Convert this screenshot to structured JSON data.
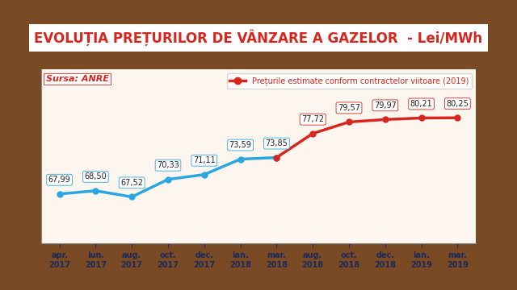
{
  "chart_data": {
    "type": "line",
    "title": "EVOLUȚIA PREȚURILOR DE VÂNZARE A GAZELOR  - Lei/MWh",
    "annotations": [
      "Sursa: ANRE"
    ],
    "categories": [
      "apr.\n2017",
      "iun.\n2017",
      "aug.\n2017",
      "oct.\n2017",
      "dec.\n2017",
      "ian.\n2018",
      "mar.\n2018",
      "aug.\n2018",
      "oct.\n2018",
      "dec.\n2018",
      "ian.\n2019",
      "mar.\n2019"
    ],
    "series": [
      {
        "color": "#2aa7e0",
        "marker": "o",
        "line_style": "solid",
        "values": [
          67.99,
          68.5,
          67.52,
          70.33,
          71.11,
          73.59,
          73.85,
          null,
          null,
          null,
          null,
          null
        ],
        "value_labels": [
          "67,99",
          "68,50",
          "67,52",
          "70,33",
          "71,11",
          "73,59",
          "73,85",
          null,
          null,
          null,
          null,
          null
        ]
      },
      {
        "name": "Prețurile estimate conform contractelor viitoare (2019)",
        "color": "#d7261e",
        "marker": "o",
        "line_style": "solid",
        "values": [
          null,
          null,
          null,
          null,
          null,
          null,
          73.85,
          77.72,
          79.57,
          79.97,
          80.21,
          80.25
        ],
        "value_labels": [
          null,
          null,
          null,
          null,
          null,
          null,
          null,
          "77,72",
          "79,57",
          "79,97",
          "80,21",
          "80,25"
        ]
      }
    ],
    "ylim": [
      60,
      88
    ],
    "yticks": [],
    "tick_labels": "x",
    "grid": false,
    "legend": "upper right",
    "data_labels": true
  }
}
